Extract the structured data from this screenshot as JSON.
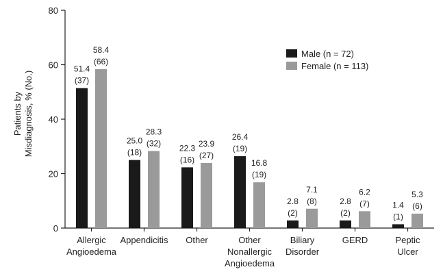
{
  "chart_data": {
    "type": "bar",
    "y_label": "Patients by\nMisdiagnosis, % (No.)",
    "categories": [
      "Allergic\nAngioedema",
      "Appendicitis",
      "Other",
      "Other\nNonallergic\nAngioedema",
      "Biliary\nDisorder",
      "GERD",
      "Peptic\nUlcer"
    ],
    "series": [
      {
        "name": "Male  (n = 72)",
        "color": "#1a1a1a",
        "values": [
          51.4,
          25.0,
          22.3,
          26.4,
          2.8,
          2.8,
          1.4
        ],
        "value_labels": [
          "51.4",
          "25.0",
          "22.3",
          "26.4",
          "2.8",
          "2.8",
          "1.4"
        ],
        "count_labels": [
          "(37)",
          "(18)",
          "(16)",
          "(19)",
          "(2)",
          "(2)",
          "(1)"
        ]
      },
      {
        "name": "Female  (n = 113)",
        "color": "#9a9a9a",
        "values": [
          58.4,
          28.3,
          23.9,
          16.8,
          7.1,
          6.2,
          5.3
        ],
        "value_labels": [
          "58.4",
          "28.3",
          "23.9",
          "16.8",
          "7.1",
          "6.2",
          "5.3"
        ],
        "count_labels": [
          "(66)",
          "(32)",
          "(27)",
          "(19)",
          "(8)",
          "(7)",
          "(6)"
        ]
      }
    ],
    "ylim": [
      0,
      80
    ],
    "yticks": [
      0,
      20,
      40,
      60,
      80
    ],
    "grid": false,
    "legend": "upper right"
  }
}
